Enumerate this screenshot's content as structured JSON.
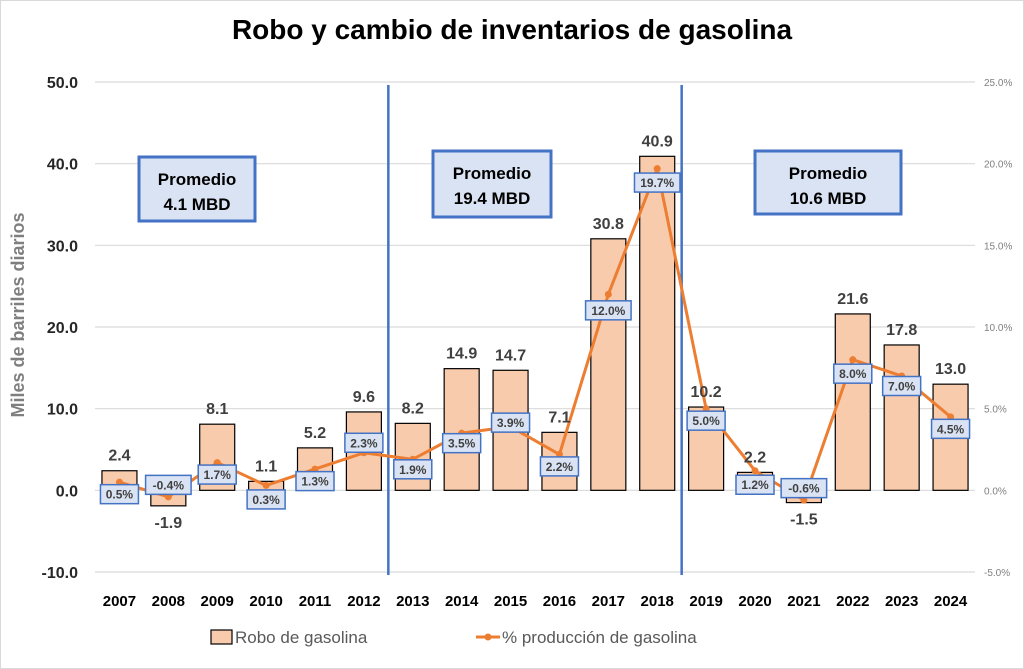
{
  "chart_data": {
    "type": "bar",
    "title": "Robo y cambio de inventarios de gasolina",
    "xlabel": "",
    "ylabel": "Miles de barriles diarios",
    "ylim": [
      -10,
      50
    ],
    "y2lim": [
      -5,
      25
    ],
    "grid": true,
    "legend_position": "bottom",
    "categories": [
      "2007",
      "2008",
      "2009",
      "2010",
      "2011",
      "2012",
      "2013",
      "2014",
      "2015",
      "2016",
      "2017",
      "2018",
      "2019",
      "2020",
      "2021",
      "2022",
      "2023",
      "2024"
    ],
    "y_ticks": [
      "50.0",
      "40.0",
      "30.0",
      "20.0",
      "10.0",
      "0.0",
      "-10.0"
    ],
    "y_tick_values": [
      50,
      40,
      30,
      20,
      10,
      0,
      -10
    ],
    "y2_ticks": [
      "25.0%",
      "20.0%",
      "15.0%",
      "10.0%",
      "5.0%",
      "0.0%",
      "-5.0%"
    ],
    "y2_tick_values": [
      25,
      20,
      15,
      10,
      5,
      0,
      -5
    ],
    "series": [
      {
        "name": "Robo de gasolina",
        "type": "bar",
        "axis": "left",
        "color": "#f8cbad",
        "values": [
          2.4,
          -1.9,
          8.1,
          1.1,
          5.2,
          9.6,
          8.2,
          14.9,
          14.7,
          7.1,
          30.8,
          40.9,
          10.2,
          2.2,
          -1.5,
          21.6,
          17.8,
          13.0
        ],
        "labels": [
          "2.4",
          "-1.9",
          "8.1",
          "1.1",
          "5.2",
          "9.6",
          "8.2",
          "14.9",
          "14.7",
          "7.1",
          "30.8",
          "40.9",
          "10.2",
          "2.2",
          "-1.5",
          "21.6",
          "17.8",
          "13.0"
        ]
      },
      {
        "name": "% producción de gasolina",
        "type": "line",
        "axis": "right",
        "color": "#ed7d31",
        "values": [
          0.5,
          -0.4,
          1.7,
          0.3,
          1.3,
          2.3,
          1.9,
          3.5,
          3.9,
          2.2,
          12.0,
          19.7,
          5.0,
          1.2,
          -0.6,
          8.0,
          7.0,
          4.5
        ],
        "labels": [
          "0.5%",
          "-0.4%",
          "1.7%",
          "0.3%",
          "1.3%",
          "2.3%",
          "1.9%",
          "3.5%",
          "3.9%",
          "2.2%",
          "12.0%",
          "19.7%",
          "5.0%",
          "1.2%",
          "-0.6%",
          "8.0%",
          "7.0%",
          "4.5%"
        ]
      }
    ],
    "annotations": [
      {
        "line1": "Promedio",
        "line2": "4.1 MBD"
      },
      {
        "line1": "Promedio",
        "line2": "19.4 MBD"
      },
      {
        "line1": "Promedio",
        "line2": "10.6 MBD"
      }
    ],
    "separators_after": [
      "2012",
      "2018"
    ]
  }
}
